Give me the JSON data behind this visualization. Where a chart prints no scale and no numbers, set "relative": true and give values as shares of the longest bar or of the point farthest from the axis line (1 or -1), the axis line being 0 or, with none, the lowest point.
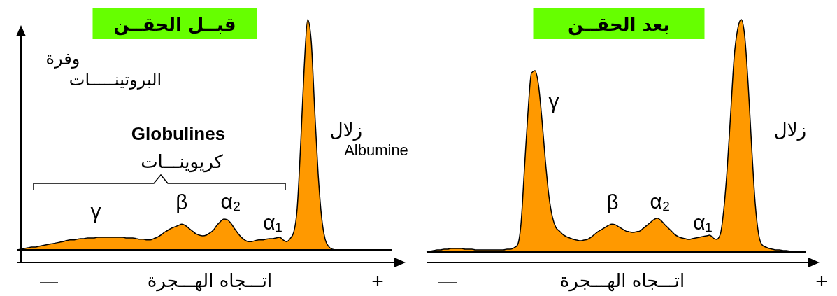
{
  "chart_data": [
    {
      "type": "area",
      "relative": true,
      "title": "قبــل الحقــن",
      "ylabel": "وفرة البروتينـــــات",
      "xlabel": "اتـــجاه الهـــجرة",
      "color": "#ff9900",
      "categories": [
        null,
        null,
        null,
        null,
        null,
        null,
        null,
        null,
        null,
        null,
        null,
        null,
        null,
        null,
        null,
        null,
        null,
        null,
        null,
        null,
        null,
        null,
        null,
        null,
        null,
        null,
        null,
        null,
        null,
        null,
        null,
        null,
        null,
        null,
        null,
        null,
        null,
        null,
        null,
        null,
        null,
        null,
        null,
        null,
        null,
        null,
        null,
        null,
        null,
        null,
        null,
        null,
        null,
        null,
        null,
        null,
        null,
        null,
        null,
        null,
        null,
        null,
        null,
        null,
        null,
        null,
        null,
        null,
        null,
        null,
        null,
        null,
        null,
        null,
        null,
        null,
        null,
        null,
        null,
        null,
        null,
        null,
        null,
        null,
        null,
        null,
        null,
        null,
        null,
        null,
        null,
        null
      ],
      "values": [
        0,
        0.003,
        0.006,
        0.009,
        0.012,
        0.012,
        0.015,
        0.018,
        0.021,
        0.024,
        0.027,
        0.03,
        0.033,
        0.036,
        0.04,
        0.043,
        0.043,
        0.046,
        0.049,
        0.049,
        0.052,
        0.052,
        0.052,
        0.055,
        0.055,
        0.055,
        0.055,
        0.055,
        0.055,
        0.055,
        0.055,
        0.052,
        0.052,
        0.052,
        0.049,
        0.046,
        0.046,
        0.043,
        0.043,
        0.049,
        0.055,
        0.064,
        0.076,
        0.085,
        0.094,
        0.1,
        0.106,
        0.112,
        0.106,
        0.094,
        0.082,
        0.07,
        0.064,
        0.061,
        0.064,
        0.073,
        0.085,
        0.106,
        0.122,
        0.134,
        0.131,
        0.116,
        0.094,
        0.073,
        0.055,
        0.043,
        0.036,
        0.036,
        0.04,
        0.043,
        0.043,
        0.046,
        0.049,
        0.049,
        0.052,
        0.055,
        0.043,
        0.036,
        0.049,
        0.076,
        0.18,
        0.46,
        0.79,
        1,
        0.91,
        0.61,
        0.33,
        0.14,
        0.046,
        0.015,
        0.003,
        0
      ],
      "annotations": [
        "Globulines",
        "كريوينـــات",
        "γ",
        "β",
        "α₂",
        "α₁",
        "زلال",
        "Albumine",
        "—",
        "+"
      ]
    },
    {
      "type": "area",
      "relative": true,
      "title": "بعد الحقــن",
      "xlabel": "اتـــجاه الهـــجرة",
      "color": "#ff9900",
      "categories": [
        null,
        null,
        null,
        null,
        null,
        null,
        null,
        null,
        null,
        null,
        null,
        null,
        null,
        null,
        null,
        null,
        null,
        null,
        null,
        null,
        null,
        null,
        null,
        null,
        null,
        null,
        null,
        null,
        null,
        null,
        null,
        null,
        null,
        null,
        null,
        null,
        null,
        null,
        null,
        null,
        null,
        null,
        null,
        null,
        null,
        null,
        null,
        null,
        null,
        null,
        null,
        null,
        null,
        null,
        null,
        null,
        null,
        null,
        null,
        null,
        null,
        null,
        null,
        null,
        null,
        null,
        null,
        null,
        null,
        null,
        null,
        null,
        null,
        null,
        null,
        null,
        null,
        null,
        null,
        null,
        null,
        null,
        null,
        null,
        null,
        null,
        null,
        null,
        null,
        null,
        null,
        null,
        null,
        null,
        null,
        null,
        null,
        null,
        null,
        null,
        null,
        null,
        null,
        null,
        null,
        null,
        null,
        null,
        null
      ],
      "values": [
        0,
        0.003,
        0.006,
        0.009,
        0.009,
        0.012,
        0.012,
        0.015,
        0.015,
        0.015,
        0.015,
        0.012,
        0.012,
        0.012,
        0.009,
        0.009,
        0.009,
        0.009,
        0.009,
        0.009,
        0.009,
        0.009,
        0.009,
        0.012,
        0.012,
        0.018,
        0.03,
        0.12,
        0.36,
        0.6,
        0.77,
        0.78,
        0.72,
        0.57,
        0.39,
        0.24,
        0.15,
        0.105,
        0.09,
        0.075,
        0.066,
        0.06,
        0.054,
        0.051,
        0.048,
        0.051,
        0.054,
        0.063,
        0.075,
        0.087,
        0.096,
        0.105,
        0.114,
        0.12,
        0.117,
        0.108,
        0.099,
        0.09,
        0.087,
        0.084,
        0.087,
        0.09,
        0.102,
        0.114,
        0.127,
        0.139,
        0.145,
        0.136,
        0.12,
        0.105,
        0.09,
        0.075,
        0.066,
        0.06,
        0.057,
        0.054,
        0.057,
        0.06,
        0.063,
        0.066,
        0.069,
        0.072,
        0.06,
        0.054,
        0.075,
        0.18,
        0.36,
        0.6,
        0.84,
        0.96,
        1,
        0.93,
        0.72,
        0.45,
        0.21,
        0.075,
        0.03,
        0.021,
        0.015,
        0.012,
        0.009,
        0.009,
        0.006,
        0.006,
        0.003,
        0.003,
        0.003,
        0,
        0
      ],
      "annotations": [
        "γ",
        "β",
        "α₂",
        "α₁",
        "زلال",
        "—",
        "+"
      ]
    }
  ]
}
